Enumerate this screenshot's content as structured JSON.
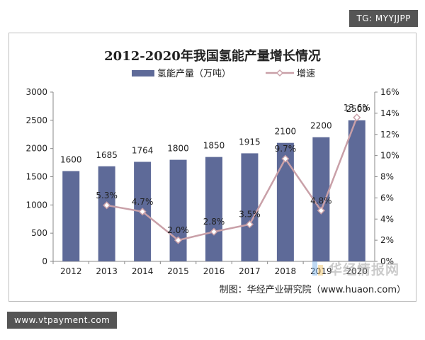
{
  "badges": {
    "top_right": "TG: MYYJJPP",
    "bottom_left": "www.vtpayment.com"
  },
  "watermark": {
    "text": "华经情报网"
  },
  "colors": {
    "bar": "#5e6a98",
    "line": "#c9a0a8",
    "marker_fill": "#ffffff",
    "axis": "#888888",
    "grid": "#d9d9d9",
    "text": "#222222"
  },
  "chart_data": {
    "type": "bar",
    "title": "2012-2020年我国氢能产量增长情况",
    "source": "制图：华经产业研究院（www.huaon.com）",
    "legend_position": "top",
    "categories": [
      "2012",
      "2013",
      "2014",
      "2015",
      "2016",
      "2017",
      "2018",
      "2019",
      "2020"
    ],
    "series": [
      {
        "name": "氢能产量（万吨）",
        "type": "bar",
        "axis": "left",
        "values": [
          1600,
          1685,
          1764,
          1800,
          1850,
          1915,
          2100,
          2200,
          2500
        ],
        "labels": [
          "1600",
          "1685",
          "1764",
          "1800",
          "1850",
          "1915",
          "2100",
          "2200",
          "2500"
        ]
      },
      {
        "name": "增速",
        "type": "line",
        "axis": "right",
        "values": [
          null,
          5.3,
          4.7,
          2.0,
          2.8,
          3.5,
          9.7,
          4.8,
          13.6
        ],
        "labels": [
          "",
          "5.3%",
          "4.7%",
          "2.0%",
          "2.8%",
          "3.5%",
          "9.7%",
          "4.8%",
          "13.6%"
        ]
      }
    ],
    "y_left": {
      "ylim": [
        0,
        3000
      ],
      "ticks": [
        "0",
        "500",
        "1000",
        "1500",
        "2000",
        "2500",
        "3000"
      ]
    },
    "y_right": {
      "ylim": [
        0,
        16
      ],
      "ticks": [
        "0%",
        "2%",
        "4%",
        "6%",
        "8%",
        "10%",
        "12%",
        "14%",
        "16%"
      ]
    },
    "grid": false
  }
}
